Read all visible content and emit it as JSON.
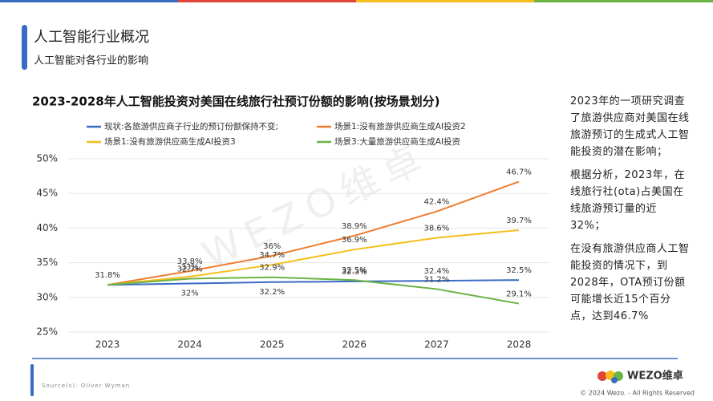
{
  "header": {
    "title": "人工智能行业概况",
    "subtitle": "人工智能对各行业的影响"
  },
  "chart_data": {
    "type": "line",
    "title": "2023-2028年人工智能投资对美国在线旅行社预订份额的影响(按场景划分)",
    "categories": [
      "2023",
      "2024",
      "2025",
      "2026",
      "2027",
      "2028"
    ],
    "series": [
      {
        "name": "现状:各旅游供应商子行业的预订份额保持不变;",
        "color": "#3a6bc4",
        "values": [
          31.8,
          32,
          32.2,
          32.3,
          32.4,
          32.5
        ],
        "value_labels": [
          "31.8%",
          "32%",
          "32.2%",
          "32.3%",
          "32.4%",
          "32.5%"
        ]
      },
      {
        "name": "场景1:没有旅游供应商生成AI投资2",
        "color": "#ee7d31",
        "values": [
          31.8,
          33.8,
          36,
          38.9,
          42.4,
          46.7
        ],
        "value_labels": [
          null,
          "33.8%",
          "36%",
          "38.9%",
          "42.4%",
          "46.7%"
        ]
      },
      {
        "name": "场景1:没有旅游供应商生成AI投资3",
        "color": "#f5be1c",
        "values": [
          31.8,
          33,
          34.7,
          36.9,
          38.6,
          39.7
        ],
        "value_labels": [
          null,
          "33%",
          "34.7%",
          "36.9%",
          "38.6%",
          "39.7%"
        ]
      },
      {
        "name": "场景3:大量旅游供应商生成AI投资",
        "color": "#6ab345",
        "values": [
          31.8,
          32.7,
          32.9,
          32.5,
          31.2,
          29.1
        ],
        "value_labels": [
          null,
          "32.7%",
          "32.9%",
          "32.5%",
          "31.2%",
          "29.1%"
        ]
      }
    ],
    "ylim": [
      25,
      50
    ],
    "yticks": [
      {
        "value": 25,
        "label": "25%"
      },
      {
        "value": 30,
        "label": "30%"
      },
      {
        "value": 35,
        "label": "35%"
      },
      {
        "value": 40,
        "label": "40%"
      },
      {
        "value": 45,
        "label": "45%"
      },
      {
        "value": 50,
        "label": "50%"
      }
    ],
    "grid": true
  },
  "notes": [
    "2023年的一项研究调查了旅游供应商对美国在线旅游预订的生成式人工智能投资的潜在影响；",
    "根据分析，2023年，在线旅行社(ota)占美国在线旅游预订量的近32%；",
    "在没有旅游供应商人工智能投资的情况下，到2028年，OTA预订份额可能增长近15个百分点，达到46.7%"
  ],
  "footer": {
    "source": "Source(s): Oliver Wyman",
    "logo": "WEZO维卓",
    "copyright": "© 2024 Wezo. - All Rights Reserved",
    "watermark": "WEZO维卓"
  }
}
